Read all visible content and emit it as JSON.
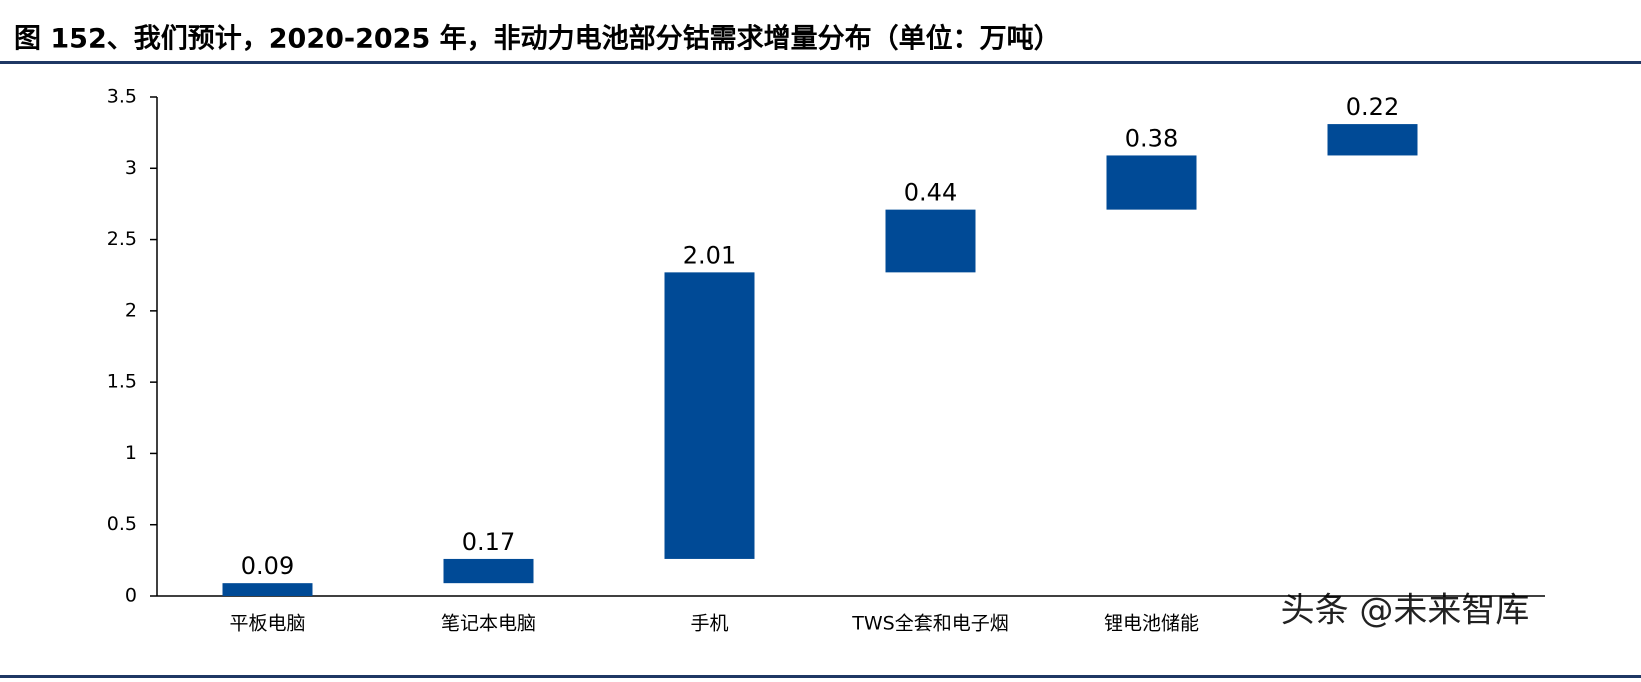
{
  "chart_data": {
    "type": "waterfall",
    "title": "图 152、我们预计，2020-2025 年，非动力电池部分钴需求增量分布（单位：万吨）",
    "categories": [
      "平板电脑",
      "笔记本电脑",
      "手机",
      "TWS全套和电子烟",
      "锂电池储能",
      null
    ],
    "values": [
      0.09,
      0.17,
      2.01,
      0.44,
      0.38,
      0.22
    ],
    "color": "#004a96",
    "ylim": [
      0,
      3.5
    ],
    "yticks": [
      0,
      0.5,
      1,
      1.5,
      2,
      2.5,
      3,
      3.5
    ],
    "grid": false,
    "watermark": "头条 @未来智库"
  }
}
